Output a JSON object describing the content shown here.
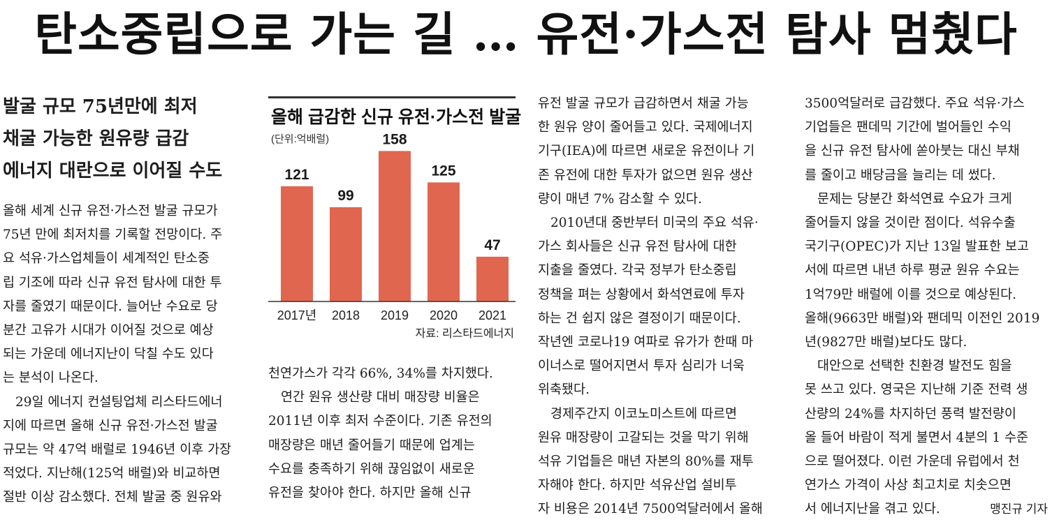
{
  "headline": "탄소중립으로 가는 길 … 유전·가스전 탐사 멈췄다",
  "subheads": [
    "발굴 규모 75년만에 최저",
    "채굴 가능한 원유량 급감",
    "에너지 대란으로 이어질 수도"
  ],
  "col1": [
    "올해 세계 신규 유전·가스전 발굴 규모가",
    "75년 만에 최저치를 기록할 전망이다. 주",
    "요 석유·가스업체들이 세계적인 탄소중",
    "립 기조에 따라 신규 유전 탐사에 대한 투",
    "자를 줄였기 때문이다. 늘어난 수요로 당",
    "분간 고유가 시대가 이어질 것으로 예상",
    "되는 가운데 에너지난이 닥칠 수도 있다",
    "는 분석이 나온다.",
    "29일 에너지 컨설팅업체 리스타드에너",
    "지에 따르면 올해 신규 유전·가스전 발굴",
    "규모는 약 47억 배럴로 1946년 이후 가장",
    "적었다. 지난해(125억 배럴)와 비교하면",
    "절반 이상 감소했다. 전체 발굴 중 원유와"
  ],
  "col2": [
    "천연가스가 각각 66%, 34%를 차지했다.",
    "연간 원유 생산량 대비 매장량 비율은",
    "2011년 이후 최저 수준이다. 기존 유전의",
    "매장량은 매년 줄어들기 때문에 업계는",
    "수요를 충족하기 위해 끊임없이 새로운",
    "유전을 찾아야 한다. 하지만 올해 신규"
  ],
  "col3": [
    "유전 발굴 규모가 급감하면서 채굴 가능",
    "한 원유 양이 줄어들고 있다. 국제에너지",
    "기구(IEA)에 따르면 새로운 유전이나 기",
    "존 유전에 대한 투자가 없으면 원유 생산",
    "량이 매년 7% 감소할 수 있다.",
    "2010년대 중반부터 미국의 주요 석유·",
    "가스 회사들은 신규 유전 탐사에 대한",
    "지출을 줄였다. 각국 정부가 탄소중립",
    "정책을 펴는 상황에서 화석연료에 투자",
    "하는 건 쉽지 않은 결정이기 때문이다.",
    "작년엔 코로나19 여파로 유가가 한때 마",
    "이너스로 떨어지면서 투자 심리가 너욱",
    "위축됐다.",
    "경제주간지 이코노미스트에 따르면",
    "원유 매장량이 고갈되는 것을 막기 위해",
    "석유 기업들은 매년 자본의 80%를 재투",
    "자해야 한다. 하지만 석유산업 설비투",
    "자 비용은 2014년 7500억달러에서 올해"
  ],
  "col4": [
    "3500억달러로 급감했다. 주요 석유·가스",
    "기업들은 팬데믹 기간에 벌어들인 수익",
    "을 신규 유전 탐사에 쏟아붓는 대신 부채",
    "를 줄이고 배당금을 늘리는 데 썼다.",
    "문제는 당분간 화석연료 수요가 크게",
    "줄어들지 않을 것이란 점이다. 석유수출",
    "국기구(OPEC)가 지난 13일 발표한 보고",
    "서에 따르면 내년 하루 평균 원유 수요는",
    "1억79만 배럴에 이를 것으로 예상된다.",
    "올해(9663만 배럴)와 팬데믹 이전인 2019",
    "년(9827만 배럴)보다도 많다.",
    "대안으로 선택한 친환경 발전도 힘을",
    "못 쓰고 있다. 영국은 지난해 기준 전력 생",
    "산량의 24%를 차지하던 풍력 발전량이",
    "올 들어 바람이 적게 불면서 4분의 1 수준",
    "으로 떨어졌다. 이런 가운데 유럽에서 천",
    "연가스 가격이 사상 최고치로 치솟으면",
    "서 에너지난을 겪고 있다."
  ],
  "byline": "맹진규 기자",
  "chart_data": {
    "type": "bar",
    "title": "올해 급감한 신규 유전·가스전 발굴",
    "unit": "(단위:억배럴)",
    "categories": [
      "2017년",
      "2018",
      "2019",
      "2020",
      "2021"
    ],
    "values": [
      121,
      99,
      158,
      125,
      47
    ],
    "value_labels": [
      "121",
      "99",
      "158",
      "125",
      "47"
    ],
    "ylim": [
      0,
      170
    ],
    "bar_color": "#e06650",
    "source": "자료: 리스타드에너지"
  }
}
